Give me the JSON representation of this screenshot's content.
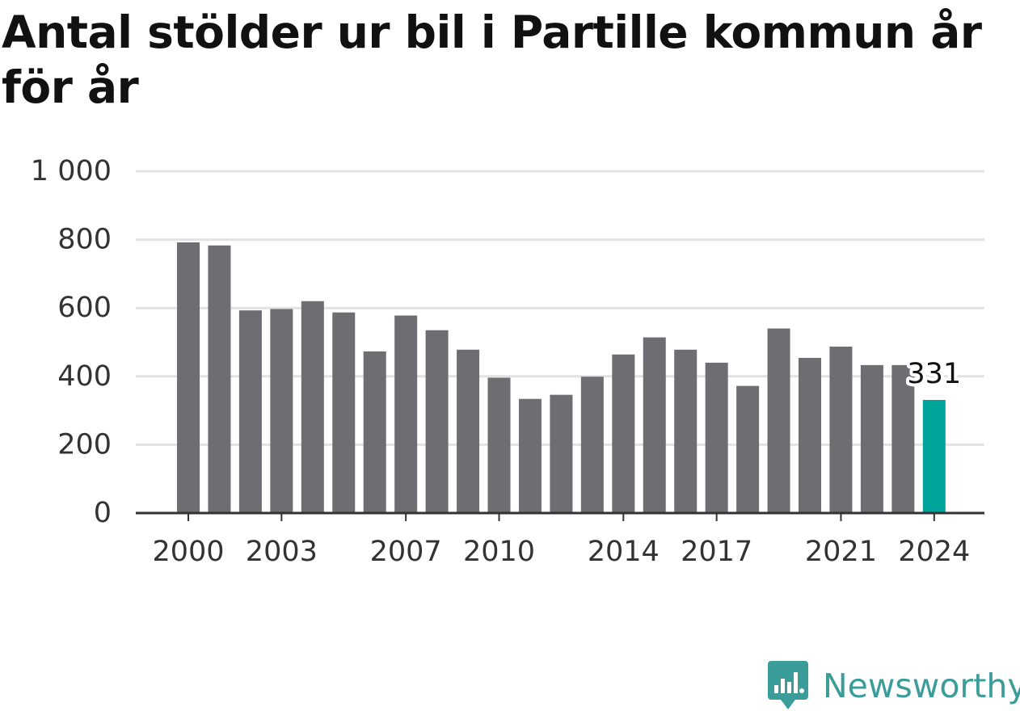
{
  "title": "Antal stölder ur bil i Partille kommun år för år",
  "brand": {
    "name": "Newsworthy",
    "color": "#3a9d9a"
  },
  "colors": {
    "bar": "#6e6d72",
    "highlight": "#00a49a",
    "grid": "#e2e2e2",
    "axis": "#333333"
  },
  "chart_data": {
    "type": "bar",
    "title": "Antal stölder ur bil i Partille kommun år för år",
    "xlabel": "",
    "ylabel": "",
    "categories": [
      "2000",
      "2001",
      "2002",
      "2003",
      "2004",
      "2005",
      "2006",
      "2007",
      "2008",
      "2009",
      "2010",
      "2011",
      "2012",
      "2013",
      "2014",
      "2015",
      "2016",
      "2017",
      "2018",
      "2019",
      "2020",
      "2021",
      "2022",
      "2023",
      "2024"
    ],
    "values": [
      792,
      783,
      593,
      597,
      620,
      587,
      473,
      578,
      535,
      478,
      396,
      334,
      346,
      399,
      464,
      514,
      478,
      440,
      372,
      540,
      454,
      487,
      433,
      433,
      331
    ],
    "highlight_index": 24,
    "highlight_label": "331",
    "ylim": [
      0,
      1000
    ],
    "yticks": [
      0,
      200,
      400,
      600,
      800,
      1000
    ],
    "ytick_labels": [
      "0",
      "200",
      "400",
      "600",
      "800",
      "1 000"
    ],
    "xtick_labels": [
      "2000",
      "2003",
      "2007",
      "2010",
      "2014",
      "2017",
      "2021",
      "2024"
    ],
    "grid": true,
    "legend": "none"
  }
}
